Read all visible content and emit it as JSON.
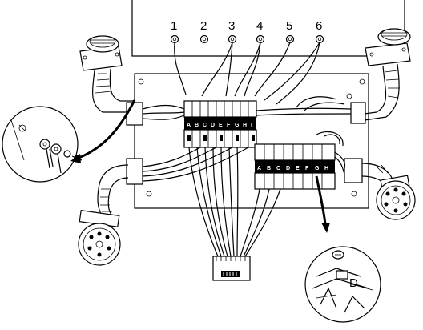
{
  "figure": {
    "numbered_labels": [
      "1",
      "2",
      "3",
      "4",
      "5",
      "6"
    ],
    "terminal_strip_upper": [
      "A",
      "B",
      "C",
      "D",
      "E",
      "F",
      "G",
      "H",
      "I"
    ],
    "terminal_strip_lower": [
      "A",
      "B",
      "C",
      "D",
      "E",
      "F",
      "G",
      "H"
    ],
    "inset_detail_letter": "D"
  }
}
